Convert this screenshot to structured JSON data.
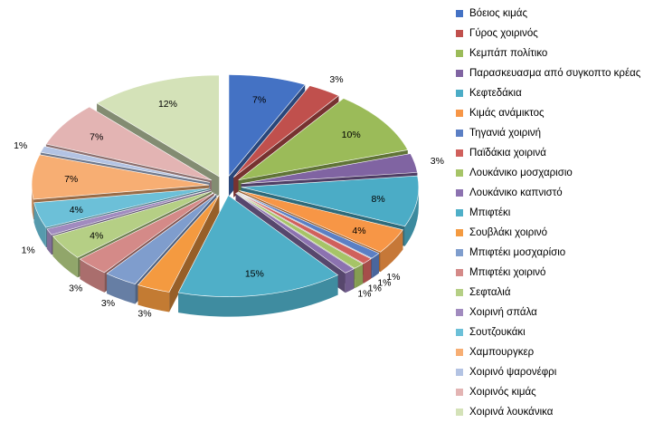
{
  "chart_data": {
    "type": "pie",
    "variant": "exploded-3d",
    "legend_position": "right",
    "categories": [
      "Βόειος κιμάς",
      "Γύρος χοιρινός",
      "Κεμπάπ πολίτικο",
      "Παρασκευασμα από συγκοπτο κρέας",
      "Κεφτεδάκια",
      "Κιμάς ανάμικτος",
      "Τηγανιά χοιρινή",
      "Παϊδάκια χοιρινά",
      "Λουκάνικο μοσχαρισιο",
      "Λουκάνικο καπνιστό",
      "Μπιφτέκι",
      "Σουβλάκι χοιρινό",
      "Μπιφτέκι μοσχαρίσιο",
      "Μπιφτέκι χοιρινό",
      "Σεφταλιά",
      "Χοιρινή σπάλα",
      "Σουτζουκάκι",
      "Χαμπουργκερ",
      "Χοιρινό ψαρονέφρι",
      "Χοιρινός κιμάς",
      "Χοιρινά λουκάνικα"
    ],
    "values": [
      7,
      3,
      10,
      3,
      8,
      4,
      1,
      1,
      1,
      1,
      15,
      3,
      3,
      3,
      4,
      1,
      4,
      7,
      1,
      7,
      12
    ],
    "data_labels": [
      "7%",
      "3%",
      "10%",
      "3%",
      "8%",
      "4%",
      "1%",
      "1%",
      "1%",
      "1%",
      "15%",
      "3%",
      "3%",
      "3%",
      "4%",
      "1%",
      "4%",
      "7%",
      "1%",
      "7%",
      "12%"
    ],
    "colors": [
      "#4472C4",
      "#C0504D",
      "#9BBB59",
      "#8064A2",
      "#4BACC6",
      "#F79646",
      "#5B7FC4",
      "#D0605C",
      "#A6C467",
      "#8C72B0",
      "#4FAFC8",
      "#F49A40",
      "#7F9DCD",
      "#D48A88",
      "#B5CF85",
      "#A18BBF",
      "#6CC0D8",
      "#F7AE73",
      "#B3C3E3",
      "#E3B4B3",
      "#D4E2B8"
    ]
  }
}
